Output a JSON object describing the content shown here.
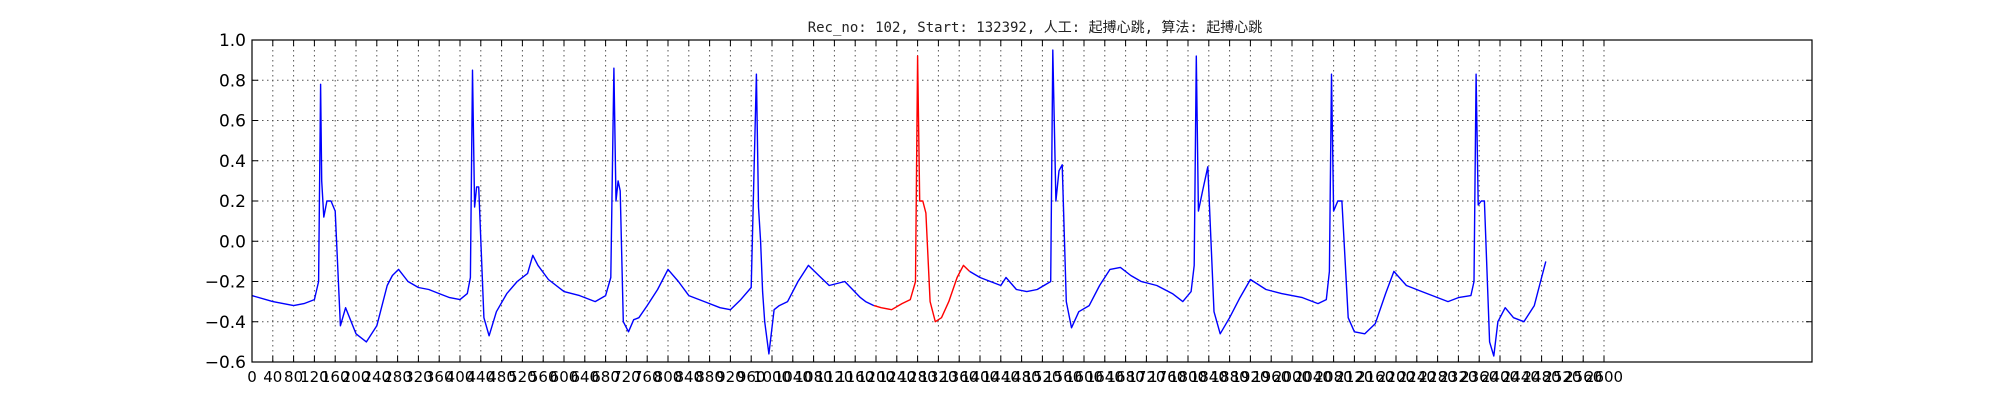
{
  "chart_data": {
    "type": "line",
    "title": "Rec_no: 102, Start: 132392, 人工: 起搏心跳, 算法: 起搏心跳",
    "ylim": [
      -0.6,
      1.0
    ],
    "xlim": [
      0,
      3000
    ],
    "y_ticks": [
      "1.0",
      "0.8",
      "0.6",
      "0.4",
      "0.2",
      "0.0",
      "−0.2",
      "−0.4",
      "−0.6"
    ],
    "y_tick_values": [
      1.0,
      0.8,
      0.6,
      0.4,
      0.2,
      0.0,
      -0.2,
      -0.4,
      -0.6
    ],
    "x_ticks": [
      "0",
      "40",
      "80",
      "120",
      "160",
      "200",
      "240",
      "280",
      "320",
      "360",
      "400",
      "440",
      "480",
      "520",
      "560",
      "600",
      "640",
      "680",
      "720",
      "760",
      "800",
      "840",
      "880",
      "920",
      "960",
      "1000",
      "1040",
      "1080",
      "1120",
      "1160",
      "1200",
      "1240",
      "1280",
      "1320",
      "1360",
      "1400",
      "1440",
      "1480",
      "1520",
      "1560",
      "1600",
      "1640",
      "1680",
      "1720",
      "1760",
      "1800",
      "1840",
      "1880",
      "1920",
      "1960",
      "2000",
      "2040",
      "2080",
      "2120",
      "2160",
      "2200",
      "2240",
      "2280",
      "2320",
      "2360",
      "2400",
      "2440",
      "2480",
      "2520",
      "2560",
      "2600"
    ],
    "grid": true,
    "series": [
      {
        "color": "#0000ff",
        "x": [
          0,
          40,
          80,
          100,
          120,
          128,
          132,
          134,
          138,
          144,
          152,
          160,
          170,
          180,
          200,
          220,
          240,
          260,
          270,
          282,
          300,
          320,
          340,
          360,
          380,
          400,
          414,
          420,
          424,
          428,
          432,
          436,
          446,
          456,
          470,
          490,
          510,
          530,
          540,
          550,
          570,
          600,
          630,
          660,
          680,
          690,
          696,
          700,
          704,
          708,
          714,
          724,
          734,
          744,
          760,
          780,
          800,
          820,
          840,
          870,
          900,
          920,
          940,
          960,
          970,
          974,
          978,
          982,
          986,
          994,
          1004,
          1014,
          1030,
          1050,
          1070,
          1090,
          1110,
          1140,
          1170,
          1180,
          1196
        ],
        "y": [
          -0.27,
          -0.3,
          -0.32,
          -0.31,
          -0.29,
          -0.2,
          0.78,
          0.3,
          0.12,
          0.2,
          0.2,
          0.15,
          -0.42,
          -0.33,
          -0.46,
          -0.5,
          -0.42,
          -0.22,
          -0.17,
          -0.14,
          -0.2,
          -0.23,
          -0.24,
          -0.26,
          -0.28,
          -0.29,
          -0.26,
          -0.18,
          0.85,
          0.17,
          0.27,
          0.27,
          -0.38,
          -0.47,
          -0.35,
          -0.26,
          -0.2,
          -0.16,
          -0.07,
          -0.12,
          -0.19,
          -0.25,
          -0.27,
          -0.3,
          -0.27,
          -0.18,
          0.86,
          0.2,
          0.3,
          0.25,
          -0.4,
          -0.45,
          -0.39,
          -0.38,
          -0.32,
          -0.24,
          -0.14,
          -0.2,
          -0.27,
          -0.3,
          -0.33,
          -0.34,
          -0.29,
          -0.23,
          0.83,
          0.17,
          0.0,
          -0.25,
          -0.4,
          -0.56,
          -0.34,
          -0.32,
          -0.3,
          -0.2,
          -0.12,
          -0.17,
          -0.22,
          -0.2,
          -0.28,
          -0.3,
          -0.32
        ]
      },
      {
        "color": "#ff0000",
        "x": [
          1196,
          1210,
          1230,
          1250,
          1266,
          1276,
          1280,
          1284,
          1290,
          1296,
          1304,
          1314,
          1326,
          1340,
          1356,
          1368,
          1380
        ],
        "y": [
          -0.32,
          -0.33,
          -0.34,
          -0.31,
          -0.29,
          -0.2,
          0.92,
          0.2,
          0.2,
          0.14,
          -0.3,
          -0.4,
          -0.38,
          -0.3,
          -0.18,
          -0.12,
          -0.15
        ]
      },
      {
        "color": "#0000ff",
        "x": [
          1380,
          1400,
          1420,
          1440,
          1450,
          1470,
          1490,
          1510,
          1536,
          1540,
          1546,
          1552,
          1558,
          1566,
          1576,
          1590,
          1610,
          1630,
          1650,
          1670,
          1690,
          1710,
          1740,
          1770,
          1790,
          1806,
          1812,
          1816,
          1820,
          1828,
          1838,
          1850,
          1862,
          1880,
          1900,
          1920,
          1950,
          1980,
          2020,
          2050,
          2066,
          2072,
          2076,
          2080,
          2088,
          2096,
          2108,
          2120,
          2140,
          2160,
          2180,
          2196,
          2220,
          2250,
          2280,
          2300,
          2320,
          2344,
          2350,
          2354,
          2358,
          2364,
          2370,
          2380,
          2388,
          2396,
          2410,
          2426,
          2446,
          2466,
          2476,
          2488
        ],
        "y": [
          -0.15,
          -0.18,
          -0.2,
          -0.22,
          -0.18,
          -0.24,
          -0.25,
          -0.24,
          -0.2,
          0.95,
          0.2,
          0.35,
          0.38,
          -0.3,
          -0.43,
          -0.35,
          -0.32,
          -0.22,
          -0.14,
          -0.13,
          -0.17,
          -0.2,
          -0.22,
          -0.26,
          -0.3,
          -0.25,
          -0.12,
          0.92,
          0.15,
          0.25,
          0.37,
          -0.35,
          -0.46,
          -0.38,
          -0.28,
          -0.19,
          -0.24,
          -0.26,
          -0.28,
          -0.31,
          -0.29,
          -0.15,
          0.83,
          0.15,
          0.2,
          0.2,
          -0.38,
          -0.45,
          -0.46,
          -0.41,
          -0.26,
          -0.15,
          -0.22,
          -0.25,
          -0.28,
          -0.3,
          -0.28,
          -0.27,
          -0.2,
          0.83,
          0.18,
          0.2,
          0.2,
          -0.5,
          -0.57,
          -0.4,
          -0.33,
          -0.38,
          -0.4,
          -0.32,
          -0.22,
          -0.1
        ]
      }
    ]
  }
}
